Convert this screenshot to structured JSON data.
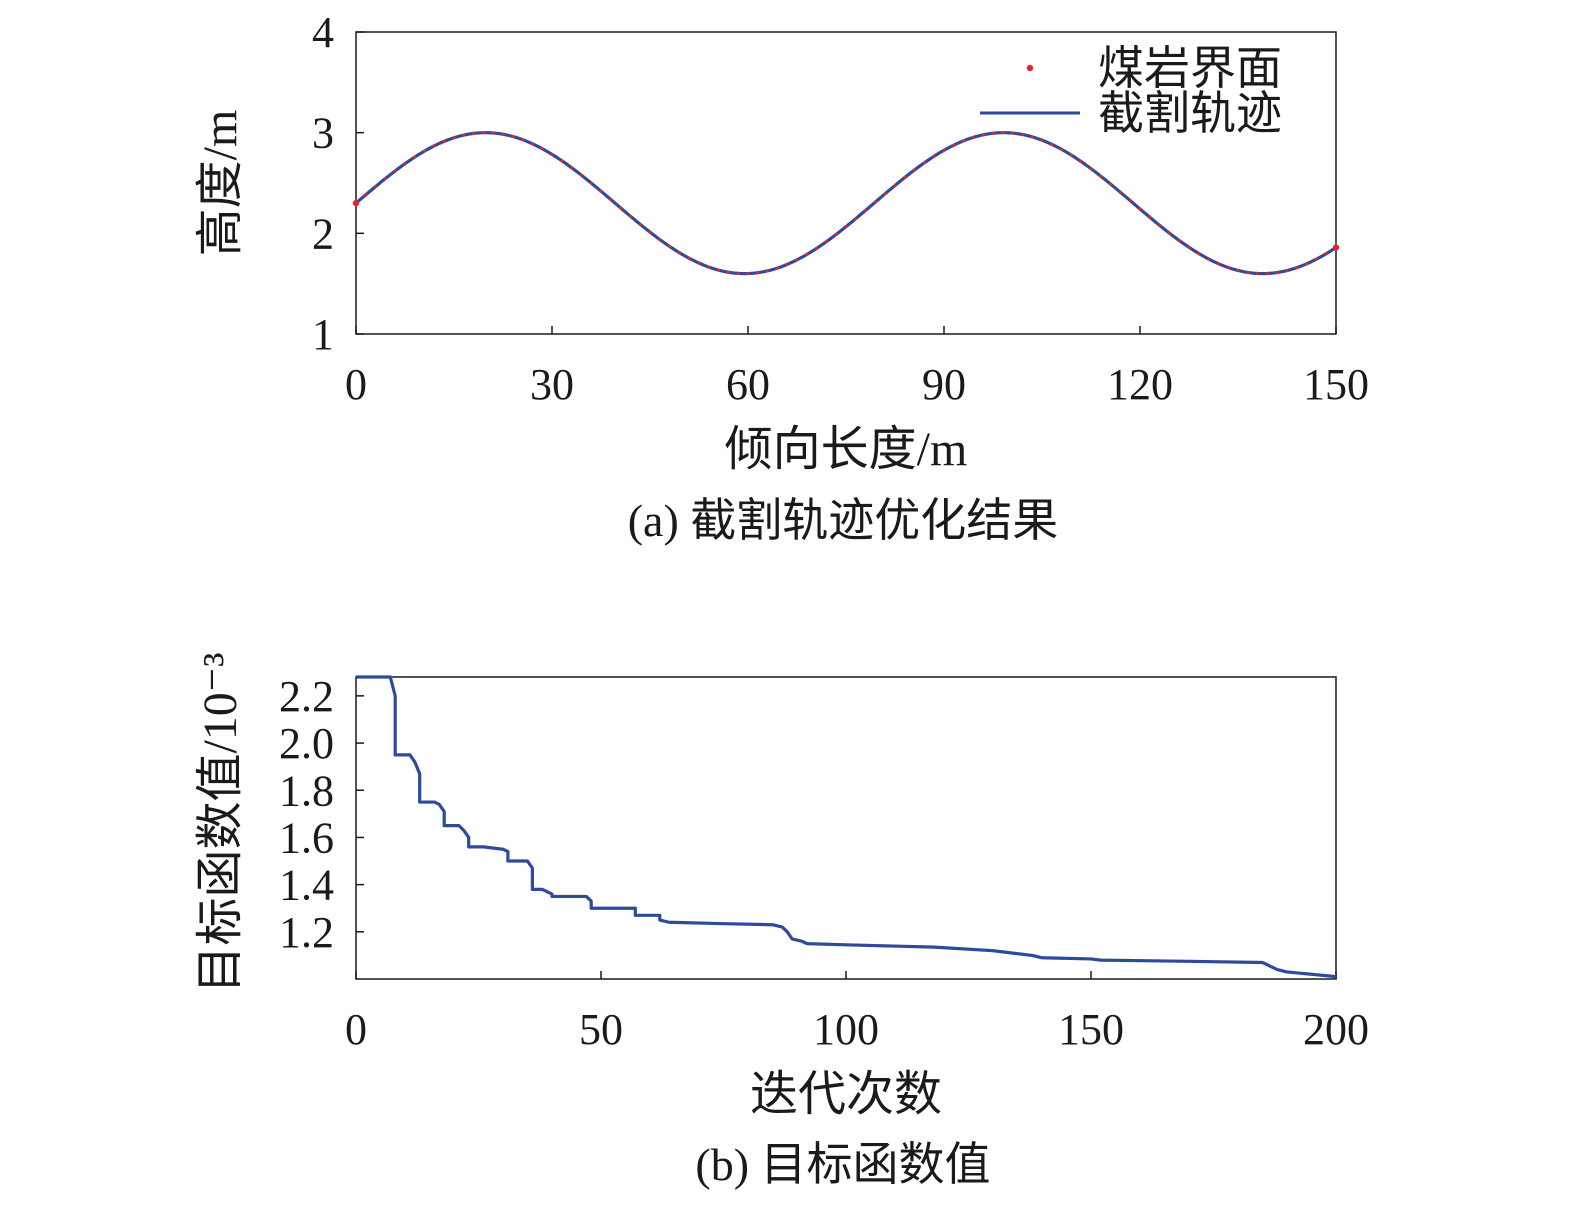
{
  "chart_data": [
    {
      "type": "line",
      "xlabel": "倾向长度/m",
      "ylabel": "高度/m",
      "caption": "(a) 截割轨迹优化结果",
      "xlim": [
        0,
        150
      ],
      "ylim": [
        1,
        4
      ],
      "xticks": [
        0,
        30,
        60,
        90,
        120,
        150
      ],
      "yticks": [
        1,
        2,
        3,
        4
      ],
      "legend_position": "top-right",
      "series": [
        {
          "name": "煤岩界面",
          "style": "scatter",
          "color": "#e0262b",
          "model": {
            "center": 2.3,
            "amplitude": 0.7,
            "period": 79.3,
            "phase": 0.0
          }
        },
        {
          "name": "截割轨迹",
          "style": "line",
          "color": "#2e4a9c",
          "model": {
            "center": 2.3,
            "amplitude": 0.7,
            "period": 79.3,
            "phase": 0.0
          }
        }
      ]
    },
    {
      "type": "line",
      "xlabel": "迭代次数",
      "ylabel": "目标函数值/10⁻³",
      "caption": "(b) 目标函数值",
      "xlim": [
        0,
        200
      ],
      "ylim": [
        1.0,
        2.28
      ],
      "xticks": [
        0,
        50,
        100,
        150,
        200
      ],
      "yticks": [
        1.2,
        1.4,
        1.6,
        1.8,
        2.0,
        2.2
      ],
      "ytick_labels": [
        "1.2",
        "1.4",
        "1.6",
        "1.8",
        "2.0",
        "2.2"
      ],
      "series": [
        {
          "name": "",
          "color": "#2e4a9c",
          "x": [
            0,
            7,
            8,
            8,
            11,
            12,
            13,
            13,
            16,
            17,
            18,
            18,
            21,
            22,
            23,
            23,
            26,
            30,
            31,
            31,
            35,
            36,
            36,
            38,
            40,
            40,
            47,
            48,
            48,
            57,
            57,
            62,
            62,
            64,
            65,
            74,
            85,
            87,
            88,
            89,
            91,
            92,
            100,
            118,
            130,
            132,
            138,
            140,
            150,
            152,
            170,
            185,
            187,
            188,
            190,
            200
          ],
          "y": [
            2.28,
            2.28,
            2.2,
            1.95,
            1.95,
            1.92,
            1.87,
            1.75,
            1.75,
            1.74,
            1.71,
            1.65,
            1.65,
            1.63,
            1.6,
            1.56,
            1.56,
            1.55,
            1.54,
            1.5,
            1.5,
            1.47,
            1.38,
            1.38,
            1.36,
            1.35,
            1.35,
            1.33,
            1.3,
            1.3,
            1.27,
            1.27,
            1.25,
            1.24,
            1.24,
            1.235,
            1.23,
            1.22,
            1.2,
            1.17,
            1.16,
            1.15,
            1.145,
            1.135,
            1.12,
            1.115,
            1.1,
            1.09,
            1.085,
            1.08,
            1.075,
            1.07,
            1.05,
            1.04,
            1.03,
            1.01
          ]
        }
      ]
    }
  ]
}
